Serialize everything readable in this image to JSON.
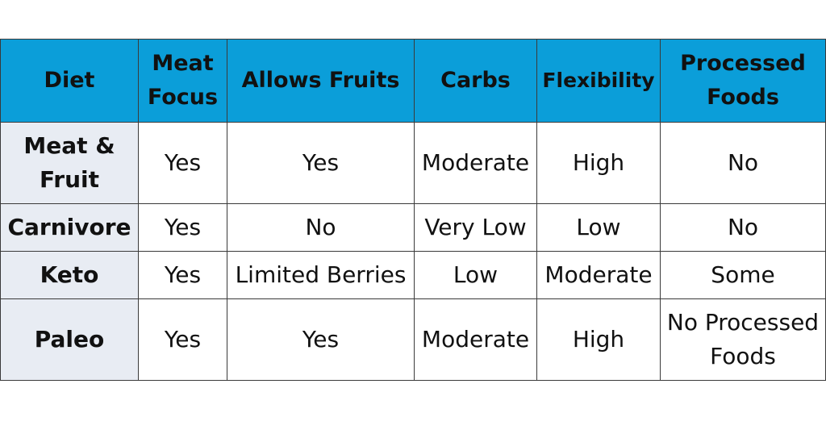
{
  "table": {
    "headers": [
      "Diet",
      "Meat Focus",
      "Allows Fruits",
      "Carbs",
      "Flexibility",
      "Processed Foods"
    ],
    "rows": [
      [
        "Meat & Fruit",
        "Yes",
        "Yes",
        "Moderate",
        "High",
        "No"
      ],
      [
        "Carnivore",
        "Yes",
        "No",
        "Very Low",
        "Low",
        "No"
      ],
      [
        "Keto",
        "Yes",
        "Limited Berries",
        "Low",
        "Moderate",
        "Some"
      ],
      [
        "Paleo",
        "Yes",
        "Yes",
        "Moderate",
        "High",
        "No Processed Foods"
      ]
    ]
  },
  "colors": {
    "header_bg": "#0b9ed9",
    "row_header_bg": "#e8ecf3",
    "border": "#3a3a3a",
    "text": "#111111"
  }
}
